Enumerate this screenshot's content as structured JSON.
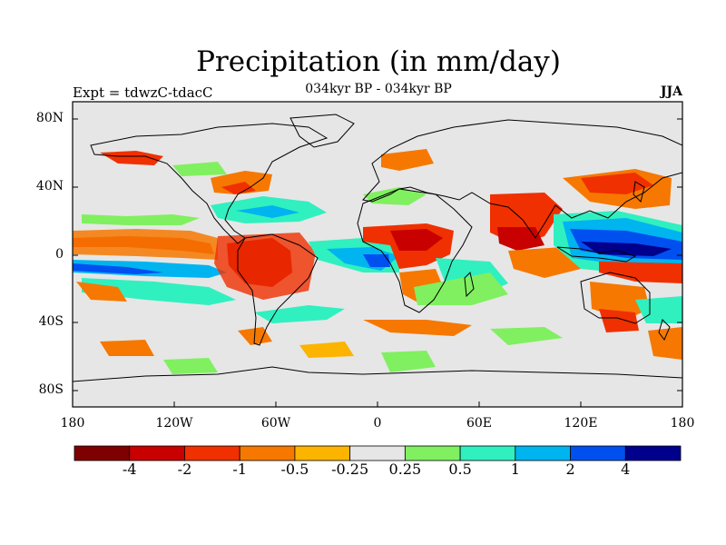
{
  "title": "Precipitation (in mm/day)",
  "experiment": "Expt = tdwzC-tdacC",
  "period": "034kyr BP - 034kyr BP",
  "season": "JJA",
  "lat_labels": [
    "80N",
    "40N",
    "0",
    "40S",
    "80S"
  ],
  "lon_labels": [
    "180",
    "120W",
    "60W",
    "0",
    "60E",
    "120E",
    "180"
  ],
  "colorbar": {
    "labels": [
      "-4",
      "-2",
      "-1",
      "-0.5",
      "-0.25",
      "0.25",
      "0.5",
      "1",
      "2",
      "4"
    ],
    "colors": [
      "#7f0000",
      "#c80000",
      "#f03000",
      "#f67800",
      "#fcb400",
      "#e6e6e6",
      "#80f060",
      "#30f0c0",
      "#00b4f0",
      "#0050f0",
      "#00008c"
    ]
  },
  "colors": {
    "ocean_bg": "#e6e6e6",
    "coast": "#000000"
  }
}
